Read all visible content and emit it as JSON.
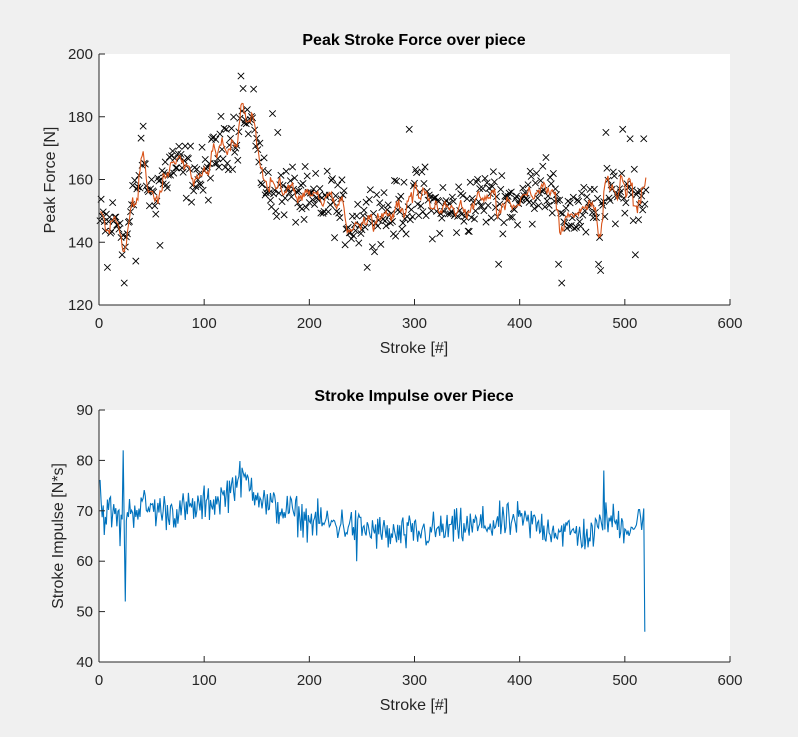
{
  "colors": {
    "figure_bg": "#f0f0f0",
    "axes_bg": "#ffffff",
    "axis": "#262626",
    "scatter": "#000000",
    "moving_avg": "#d95319",
    "impulse": "#0072bd"
  },
  "chart_data": [
    {
      "type": "scatter",
      "title": "Peak Stroke Force over piece",
      "xlabel": "Stroke [#]",
      "ylabel": "Peak Force [N]",
      "xlim": [
        0,
        600
      ],
      "ylim": [
        120,
        200
      ],
      "xticks": [
        0,
        100,
        200,
        300,
        400,
        500,
        600
      ],
      "yticks": [
        120,
        140,
        160,
        180,
        200
      ],
      "grid": false,
      "legend": false,
      "x_range": [
        1,
        520
      ],
      "series": [
        {
          "kind": "scatter",
          "marker": "x",
          "color": "#000000",
          "anchors_x": [
            0,
            10,
            20,
            25,
            30,
            40,
            50,
            60,
            70,
            80,
            90,
            100,
            110,
            120,
            130,
            140,
            150,
            155,
            160,
            170,
            180,
            190,
            200,
            220,
            240,
            260,
            280,
            300,
            320,
            340,
            360,
            380,
            400,
            420,
            440,
            460,
            480,
            490,
            500,
            510,
            520
          ],
          "anchors_y": [
            146,
            146,
            147,
            140,
            148,
            163,
            155,
            160,
            165,
            163,
            162,
            160,
            167,
            173,
            174,
            178,
            176,
            160,
            157,
            157,
            156,
            155,
            152,
            154,
            146,
            150,
            149,
            154,
            151,
            150,
            153,
            155,
            152,
            160,
            150,
            149,
            150,
            158,
            155,
            157,
            155
          ],
          "spread": 7,
          "outliers": [
            [
              8,
              132
            ],
            [
              24,
              127
            ],
            [
              22,
              136
            ],
            [
              35,
              134
            ],
            [
              42,
              177
            ],
            [
              58,
              139
            ],
            [
              135,
              193
            ],
            [
              137,
              189
            ],
            [
              165,
              181
            ],
            [
              170,
              175
            ],
            [
              255,
              132
            ],
            [
              295,
              176
            ],
            [
              310,
              164
            ],
            [
              380,
              133
            ],
            [
              425,
              167
            ],
            [
              437,
              133
            ],
            [
              440,
              127
            ],
            [
              475,
              133
            ],
            [
              477,
              131
            ],
            [
              482,
              175
            ],
            [
              498,
              176
            ],
            [
              505,
              173
            ],
            [
              510,
              136
            ],
            [
              518,
              173
            ]
          ]
        },
        {
          "kind": "line",
          "name_shown": false,
          "color": "#d95319",
          "description_from_pixels": "moving average of peak force"
        }
      ]
    },
    {
      "type": "line",
      "title": "Stroke Impulse over Piece",
      "xlabel": "Stroke [#]",
      "ylabel": "Stroke Impulse [N*s]",
      "xlim": [
        0,
        600
      ],
      "ylim": [
        40,
        90
      ],
      "xticks": [
        0,
        100,
        200,
        300,
        400,
        500,
        600
      ],
      "yticks": [
        40,
        50,
        60,
        70,
        80,
        90
      ],
      "grid": false,
      "legend": false,
      "x_range": [
        1,
        520
      ],
      "series": [
        {
          "kind": "line",
          "color": "#0072bd",
          "anchors_x": [
            0,
            2,
            5,
            10,
            20,
            30,
            40,
            60,
            80,
            100,
            120,
            130,
            140,
            150,
            160,
            180,
            200,
            240,
            280,
            320,
            360,
            400,
            440,
            470,
            480,
            490,
            500,
            510,
            517
          ],
          "anchors_y": [
            82,
            71,
            69,
            70,
            68,
            70,
            71,
            70,
            70,
            71,
            73,
            76,
            76,
            74,
            71,
            70,
            68,
            67,
            65,
            66,
            67,
            68,
            66,
            65,
            68,
            68,
            67,
            67,
            70
          ],
          "spread": 3,
          "spikes": [
            [
              23,
              82
            ],
            [
              25,
              52
            ],
            [
              20,
              63
            ],
            [
              480,
              78
            ],
            [
              245,
              60
            ],
            [
              519,
              46
            ]
          ]
        }
      ]
    }
  ]
}
